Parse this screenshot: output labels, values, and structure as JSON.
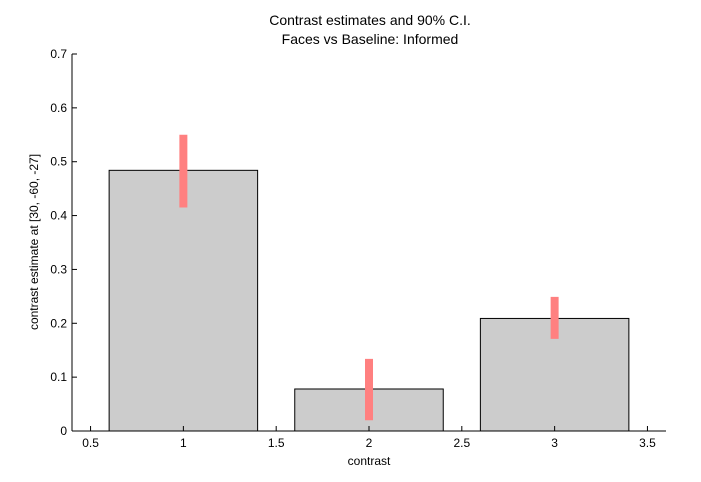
{
  "chart_data": {
    "type": "bar",
    "title": [
      "Contrast estimates and 90% C.I.",
      "Faces vs Baseline: Informed"
    ],
    "xlabel": "contrast",
    "ylabel": "contrast estimate at [30, -60, -27]",
    "xlim": [
      0.4,
      3.6
    ],
    "ylim": [
      0,
      0.7
    ],
    "x": [
      1,
      2,
      3
    ],
    "bar_width": 0.8,
    "values": [
      0.484,
      0.078,
      0.209
    ],
    "ci_low": [
      0.415,
      0.02,
      0.171
    ],
    "ci_high": [
      0.55,
      0.134,
      0.249
    ],
    "x_ticks": [
      0.5,
      1,
      1.5,
      2,
      2.5,
      3,
      3.5
    ],
    "x_tick_labels": [
      "0.5",
      "1",
      "1.5",
      "2",
      "2.5",
      "3",
      "3.5"
    ],
    "y_ticks": [
      0,
      0.1,
      0.2,
      0.3,
      0.4,
      0.5,
      0.6,
      0.7
    ],
    "y_tick_labels": [
      "0",
      "0.1",
      "0.2",
      "0.3",
      "0.4",
      "0.5",
      "0.6",
      "0.7"
    ],
    "grid": false,
    "legend": "none",
    "colors": {
      "bar_fill": "#cccccc",
      "bar_edge": "#000000",
      "errorbar": "#ff8080",
      "axis": "#000000"
    }
  }
}
